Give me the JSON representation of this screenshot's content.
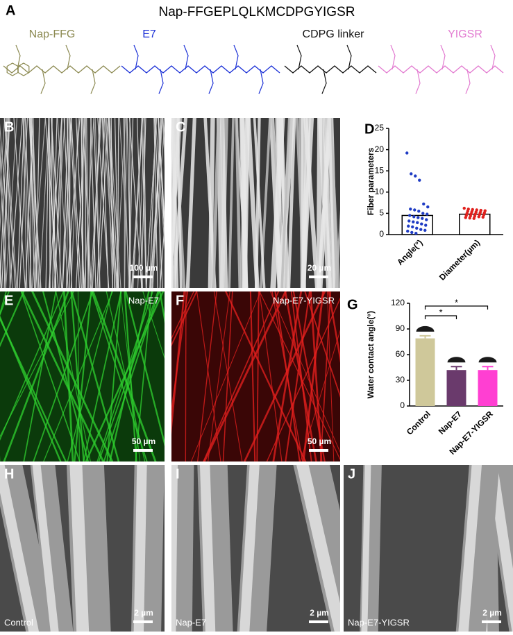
{
  "panel_A": {
    "label": "A",
    "title": "Nap-FFGEPLQLKMCDPGYIGSR",
    "segments": [
      {
        "name": "Nap-FFG",
        "color": "#8c8a52"
      },
      {
        "name": "E7",
        "color": "#1a2fd6"
      },
      {
        "name": "CDPG linker",
        "color": "#111111"
      },
      {
        "name": "YIGSR",
        "color": "#e27ad0"
      }
    ]
  },
  "images": [
    {
      "label": "B",
      "scale_bar": "100 µm"
    },
    {
      "label": "C",
      "scale_bar": "20 µm"
    },
    {
      "label": "E",
      "caption": "Nap-E7",
      "scale_bar": "50 µm",
      "color": "#2fd12f"
    },
    {
      "label": "F",
      "caption": "Nap-E7-YIGSR",
      "scale_bar": "50 µm",
      "color": "#e8201e"
    },
    {
      "label": "H",
      "caption": "Control",
      "scale_bar": "2 µm"
    },
    {
      "label": "I",
      "caption": "Nap-E7",
      "scale_bar": "2 µm"
    },
    {
      "label": "J",
      "caption": "Nap-E7-YIGSR",
      "scale_bar": "2 µm"
    }
  ],
  "chart_data": [
    {
      "type": "bar",
      "label": "D",
      "y_label": "Fiber parameters",
      "categories": [
        "Angle(°)",
        "Diameter(µm)"
      ],
      "values": [
        4.5,
        4.8
      ],
      "points": [
        [
          19.2,
          14.3,
          13.8,
          12.8,
          7.2,
          6.5,
          6.0,
          5.8,
          5.5,
          5.0,
          4.8,
          4.5,
          4.2,
          4.0,
          3.8,
          3.5,
          3.2,
          3.0,
          2.8,
          2.5,
          2.2,
          2.0,
          1.8,
          1.5,
          1.2,
          1.0,
          0.8,
          0.5,
          0.3
        ],
        [
          6.2,
          6.0,
          5.9,
          5.8,
          5.7,
          5.6,
          5.5,
          5.4,
          5.3,
          5.2,
          5.1,
          5.0,
          4.9,
          4.8,
          4.7,
          4.6,
          4.5,
          4.4,
          4.3,
          4.2,
          4.1,
          4.0,
          3.9,
          3.8
        ]
      ],
      "point_colors": [
        "#1f3cc4",
        "#e0201c"
      ],
      "color": "#ffffff",
      "ylim": [
        0,
        25
      ],
      "yticks": [
        0,
        5,
        10,
        15,
        20,
        25
      ]
    },
    {
      "type": "bar",
      "label": "G",
      "y_label": "Water contact angle(°)",
      "categories": [
        "Control",
        "Nap-E7",
        "Nap-E7-YIGSR"
      ],
      "values": [
        79,
        42,
        42
      ],
      "errors": [
        3,
        4,
        4
      ],
      "colors": [
        "#cfc89a",
        "#6a3a6c",
        "#ff3fd2"
      ],
      "ylim": [
        0,
        120
      ],
      "yticks": [
        0,
        30,
        60,
        90,
        120
      ],
      "significance": [
        {
          "from": 0,
          "to": 1,
          "label": "*"
        },
        {
          "from": 0,
          "to": 2,
          "label": "*"
        }
      ]
    }
  ]
}
